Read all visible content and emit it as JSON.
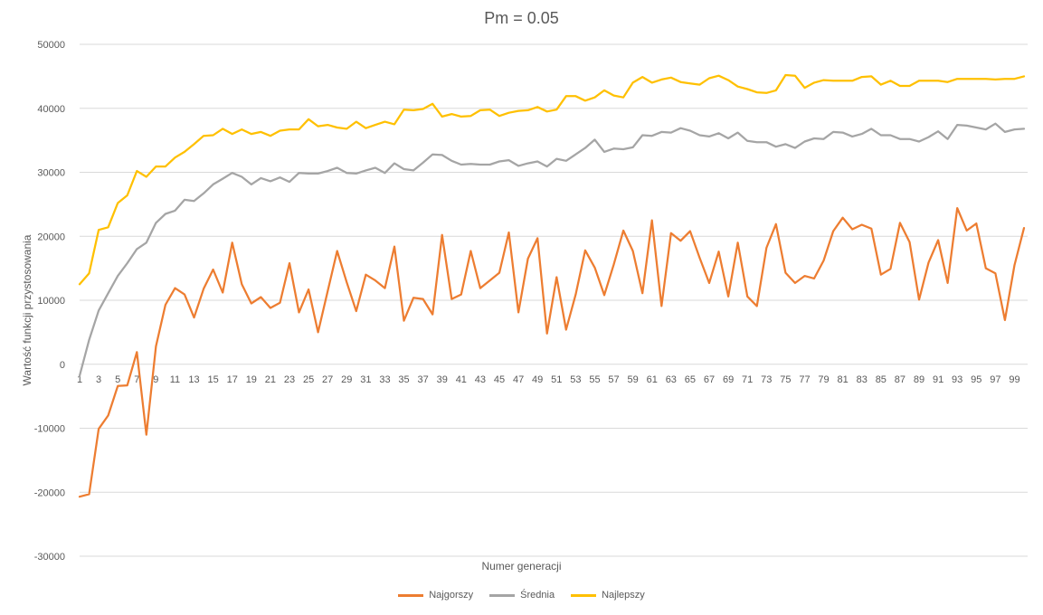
{
  "chart_data": {
    "type": "line",
    "title": "Pm = 0.05",
    "xlabel": "Numer generacji",
    "ylabel": "Wartość funkcji przystosowania",
    "ylim": [
      -30000,
      50000
    ],
    "yticks": [
      50000,
      40000,
      30000,
      20000,
      10000,
      0,
      -10000,
      -20000,
      -30000
    ],
    "x": [
      1,
      2,
      3,
      4,
      5,
      6,
      7,
      8,
      9,
      10,
      11,
      12,
      13,
      14,
      15,
      16,
      17,
      18,
      19,
      20,
      21,
      22,
      23,
      24,
      25,
      26,
      27,
      28,
      29,
      30,
      31,
      32,
      33,
      34,
      35,
      36,
      37,
      38,
      39,
      40,
      41,
      42,
      43,
      44,
      45,
      46,
      47,
      48,
      49,
      50,
      51,
      52,
      53,
      54,
      55,
      56,
      57,
      58,
      59,
      60,
      61,
      62,
      63,
      64,
      65,
      66,
      67,
      68,
      69,
      70,
      71,
      72,
      73,
      74,
      75,
      76,
      77,
      78,
      79,
      80,
      81,
      82,
      83,
      84,
      85,
      86,
      87,
      88,
      89,
      90,
      91,
      92,
      93,
      94,
      95,
      96,
      97,
      98,
      99,
      100
    ],
    "xtick_labels": [
      "1",
      "3",
      "5",
      "7",
      "9",
      "11",
      "13",
      "15",
      "17",
      "19",
      "21",
      "23",
      "25",
      "27",
      "29",
      "31",
      "33",
      "35",
      "37",
      "39",
      "41",
      "43",
      "45",
      "47",
      "49",
      "51",
      "53",
      "55",
      "57",
      "59",
      "61",
      "63",
      "65",
      "67",
      "69",
      "71",
      "73",
      "75",
      "77",
      "79",
      "81",
      "83",
      "85",
      "87",
      "89",
      "91",
      "93",
      "95",
      "97",
      "99"
    ],
    "grid": true,
    "legend_position": "bottom",
    "series": [
      {
        "name": "Najgorszy",
        "color": "#ED7D31",
        "values": [
          -20700,
          -20300,
          -10100,
          -8000,
          -3400,
          -3300,
          1900,
          -11000,
          2800,
          9300,
          11900,
          10900,
          7300,
          11800,
          14800,
          11200,
          19000,
          12500,
          9500,
          10500,
          8800,
          9600,
          15800,
          8100,
          11700,
          5000,
          11400,
          17700,
          12800,
          8300,
          14000,
          13100,
          11900,
          18400,
          6800,
          10400,
          10200,
          7800,
          20200,
          10200,
          10900,
          17700,
          11900,
          13100,
          14300,
          20600,
          8100,
          16500,
          19700,
          4800,
          13600,
          5400,
          10900,
          17800,
          15100,
          10800,
          15600,
          20900,
          17700,
          11100,
          22500,
          9100,
          20500,
          19300,
          20800,
          16600,
          12700,
          17600,
          10600,
          19000,
          10600,
          9100,
          18200,
          21900,
          14300,
          12700,
          13800,
          13400,
          16200,
          20800,
          22900,
          21100,
          21800,
          21200,
          14000,
          14900,
          22100,
          19100,
          10100,
          15900,
          19400,
          12700,
          24400,
          20900,
          22000,
          15000,
          14200,
          6900,
          15500,
          21300
        ]
      },
      {
        "name": "Średnia",
        "color": "#A5A5A5",
        "values": [
          -1800,
          3800,
          8400,
          11100,
          13800,
          15800,
          18000,
          19000,
          22100,
          23500,
          24000,
          25700,
          25500,
          26700,
          28100,
          29000,
          29900,
          29300,
          28100,
          29100,
          28600,
          29200,
          28500,
          29900,
          29800,
          29800,
          30200,
          30700,
          29900,
          29800,
          30300,
          30700,
          29900,
          31400,
          30500,
          30300,
          31500,
          32800,
          32700,
          31800,
          31200,
          31300,
          31200,
          31200,
          31700,
          31900,
          31000,
          31400,
          31700,
          30900,
          32100,
          31800,
          32800,
          33800,
          35100,
          33200,
          33700,
          33600,
          33900,
          35800,
          35700,
          36300,
          36200,
          36900,
          36500,
          35800,
          35600,
          36100,
          35300,
          36200,
          34900,
          34700,
          34700,
          34000,
          34400,
          33800,
          34800,
          35300,
          35200,
          36300,
          36200,
          35600,
          36000,
          36800,
          35800,
          35800,
          35200,
          35200,
          34800,
          35500,
          36400,
          35200,
          37400,
          37300,
          37000,
          36700,
          37600,
          36300,
          36700,
          36800
        ]
      },
      {
        "name": "Najlepszy",
        "color": "#FFC000",
        "values": [
          12500,
          14200,
          21000,
          21400,
          25200,
          26400,
          30200,
          29300,
          30900,
          30900,
          32300,
          33200,
          34400,
          35700,
          35800,
          36800,
          36000,
          36700,
          36000,
          36300,
          35700,
          36500,
          36700,
          36700,
          38300,
          37200,
          37400,
          37000,
          36800,
          37900,
          36900,
          37400,
          37900,
          37500,
          39800,
          39700,
          39900,
          40700,
          38700,
          39100,
          38700,
          38800,
          39700,
          39800,
          38800,
          39300,
          39600,
          39700,
          40200,
          39500,
          39800,
          41900,
          41900,
          41200,
          41700,
          42800,
          42000,
          41700,
          44000,
          44900,
          44000,
          44500,
          44800,
          44100,
          43900,
          43700,
          44700,
          45100,
          44400,
          43400,
          43000,
          42500,
          42400,
          42800,
          45200,
          45100,
          43200,
          44000,
          44400,
          44300,
          44300,
          44300,
          44900,
          45000,
          43700,
          44300,
          43500,
          43500,
          44300,
          44300,
          44300,
          44100,
          44600,
          44600,
          44600,
          44600,
          44500,
          44600,
          44600,
          45000
        ]
      }
    ]
  }
}
